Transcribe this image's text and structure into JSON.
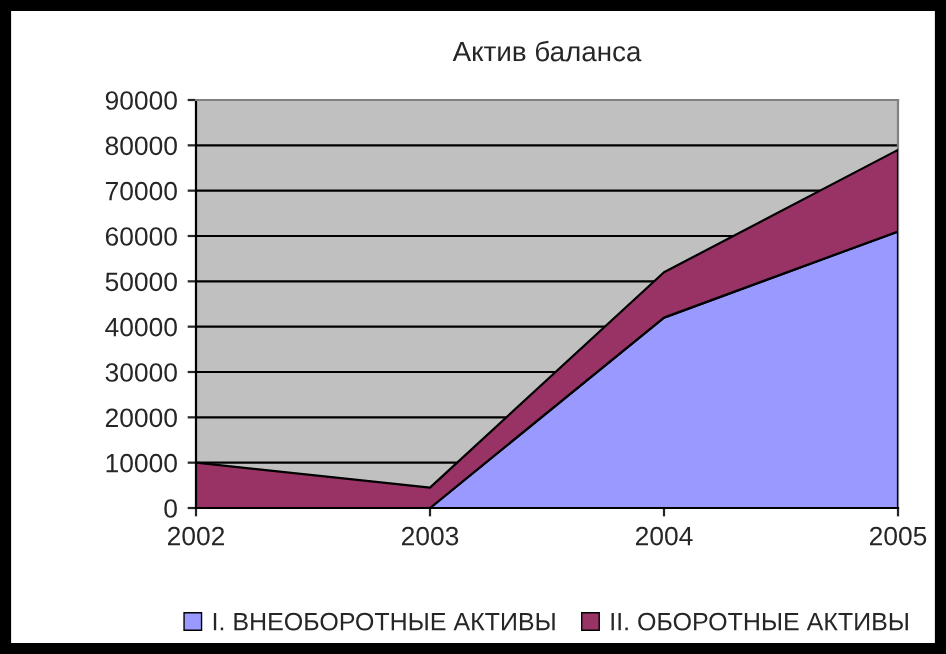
{
  "chart_data": {
    "type": "area",
    "title": "Актив баланса",
    "stacked": true,
    "categories": [
      "2002",
      "2003",
      "2004",
      "2005"
    ],
    "series": [
      {
        "name": "I. ВНЕОБОРОТНЫЕ АКТИВЫ",
        "color": "#9999ff",
        "values": [
          0,
          0,
          42000,
          61000
        ]
      },
      {
        "name": "II. ОБОРОТНЫЕ АКТИВЫ",
        "color": "#993366",
        "values": [
          10000,
          4500,
          10000,
          18000
        ]
      }
    ],
    "ylim": [
      0,
      90000
    ],
    "yticks": [
      0,
      10000,
      20000,
      30000,
      40000,
      50000,
      60000,
      70000,
      80000,
      90000
    ],
    "grid": "y",
    "legend": "bottom"
  }
}
